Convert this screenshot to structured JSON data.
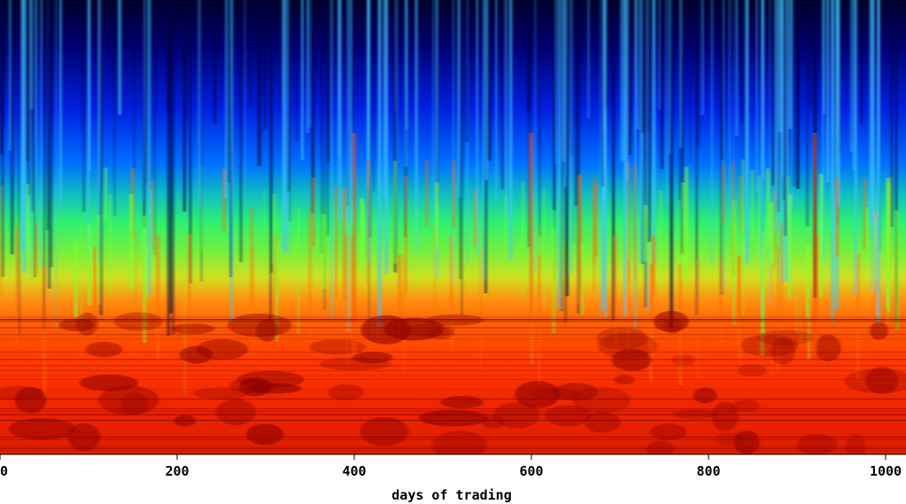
{
  "chart_data": {
    "type": "heatmap",
    "title": "",
    "xlabel": "days of trading",
    "ylabel": "",
    "xlim": [
      0,
      1023
    ],
    "x_ticks": [
      0,
      200,
      400,
      600,
      800,
      1000
    ],
    "x_tick_labels": [
      "0",
      "200",
      "400",
      "600",
      "800",
      "1000"
    ],
    "colormap": "jet",
    "colormap_colors": [
      "#00007f",
      "#0000ff",
      "#00bfff",
      "#3fff7f",
      "#ffff00",
      "#ff8000",
      "#ff1e00",
      "#8c0000"
    ],
    "intensity_bands": [
      {
        "band": "top",
        "level": 0.08
      },
      {
        "band": "upper",
        "level": 0.25
      },
      {
        "band": "middle",
        "level": 0.5
      },
      {
        "band": "lower-middle",
        "level": 0.75
      },
      {
        "band": "bottom",
        "level": 0.92
      }
    ],
    "grid": false,
    "legend": "none"
  }
}
